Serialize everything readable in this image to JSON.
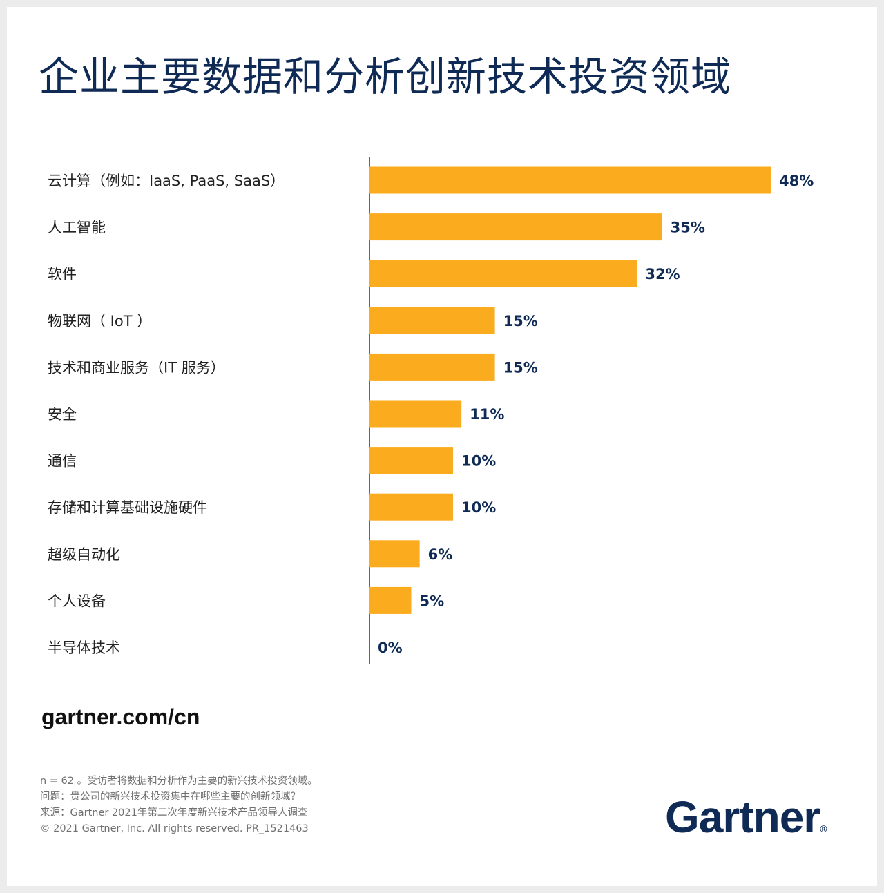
{
  "header": {
    "title": "企业主要数据和分析创新技术投资领域"
  },
  "chart_data": {
    "type": "bar",
    "orientation": "horizontal",
    "categories": [
      "云计算（例如：IaaS, PaaS, SaaS）",
      "人工智能",
      "软件",
      "物联网（ IoT ）",
      "技术和商业服务（IT 服务）",
      "安全",
      "通信",
      "存储和计算基础设施硬件",
      "超级自动化",
      "个人设备",
      "半导体技术"
    ],
    "values": [
      48,
      35,
      32,
      15,
      15,
      11,
      10,
      10,
      6,
      5,
      0
    ],
    "value_labels": [
      "48%",
      "35%",
      "32%",
      "15%",
      "15%",
      "11%",
      "10%",
      "10%",
      "6%",
      "5%",
      "0%"
    ],
    "unit": "%",
    "xlim": [
      0,
      48
    ],
    "bar_color": "#fbab1e",
    "label_color": "#0e2a55",
    "grid": false,
    "legend": "none"
  },
  "footer": {
    "website": "gartner.com/cn",
    "notes": [
      "n = 62 。受访者将数据和分析作为主要的新兴技术投资领域。",
      "问题：贵公司的新兴技术投资集中在哪些主要的创新领域？",
      "来源：Gartner 2021年第二次年度新兴技术产品领导人调查",
      "© 2021 Gartner, Inc. All rights reserved. PR_1521463"
    ],
    "logo_text": "Gartner",
    "logo_mark": "®"
  }
}
